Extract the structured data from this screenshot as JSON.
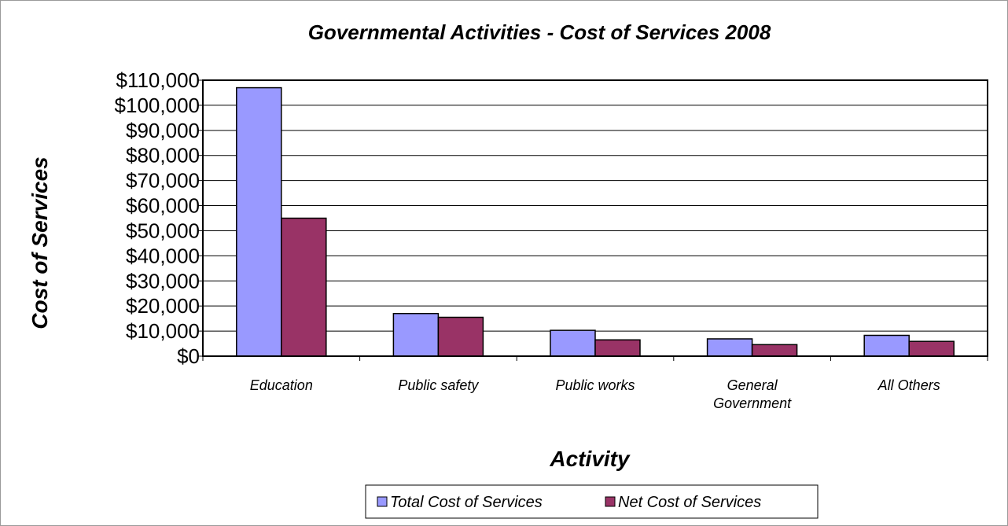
{
  "colors": {
    "series_total": "#9999ff",
    "series_net": "#993366",
    "gridline": "#000000",
    "plot_border": "#000000"
  },
  "chart_data": {
    "type": "bar",
    "title": "Governmental Activities - Cost of Services 2008",
    "xlabel": "Activity",
    "ylabel": "Cost of Services",
    "categories": [
      "Education",
      "Public safety",
      "Public works",
      "General Government",
      "All Others"
    ],
    "series": [
      {
        "name": "Total Cost of Services",
        "values": [
          107000,
          17000,
          10300,
          6900,
          8300
        ]
      },
      {
        "name": "Net Cost of Services",
        "values": [
          55000,
          15500,
          6500,
          4600,
          5900
        ]
      }
    ],
    "ylim": [
      0,
      110000
    ],
    "ytick_values": [
      0,
      10000,
      20000,
      30000,
      40000,
      50000,
      60000,
      70000,
      80000,
      90000,
      100000,
      110000
    ],
    "ytick_labels": [
      "$0",
      "$10,000",
      "$20,000",
      "$30,000",
      "$40,000",
      "$50,000",
      "$60,000",
      "$70,000",
      "$80,000",
      "$90,000",
      "$100,000",
      "$110,000"
    ],
    "grid": true,
    "legend_position": "bottom"
  }
}
